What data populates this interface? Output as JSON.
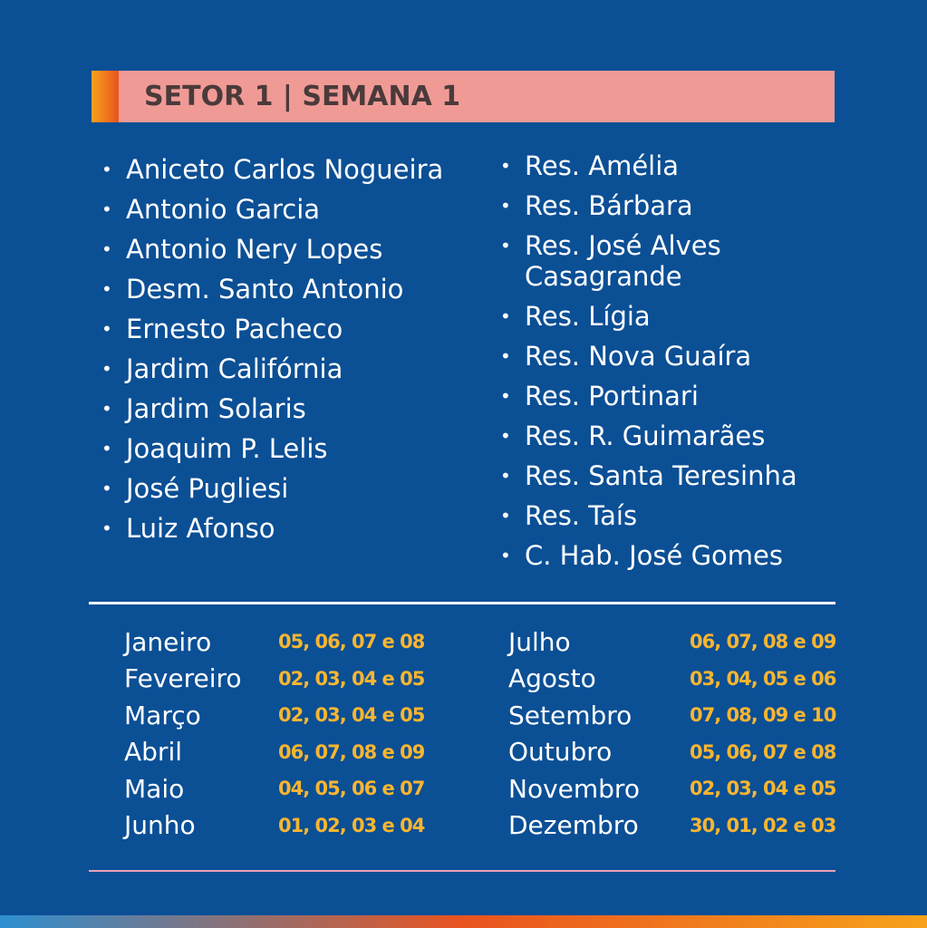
{
  "header": {
    "title": "SETOR 1 | SEMANA 1"
  },
  "neighborhoods": {
    "left": [
      "Aniceto Carlos Nogueira",
      "Antonio Garcia",
      "Antonio Nery Lopes",
      "Desm. Santo Antonio",
      "Ernesto Pacheco",
      "Jardim Califórnia",
      "Jardim Solaris",
      "Joaquim P. Lelis",
      "José Pugliesi",
      "Luiz Afonso"
    ],
    "right": [
      "Res. Amélia",
      "Res. Bárbara",
      "Res. José Alves Casagrande",
      "Res. Lígia",
      "Res. Nova Guaíra",
      "Res. Portinari",
      "Res. R. Guimarães",
      "Res. Santa Teresinha",
      "Res. Taís",
      "C. Hab. José Gomes"
    ]
  },
  "schedule": {
    "left": [
      [
        "Janeiro",
        "05, 06, 07 e 08"
      ],
      [
        "Fevereiro",
        "02, 03, 04 e 05"
      ],
      [
        "Março",
        "02, 03, 04 e 05"
      ],
      [
        "Abril",
        "06, 07, 08 e 09"
      ],
      [
        "Maio",
        "04, 05, 06 e 07"
      ],
      [
        "Junho",
        "01, 02, 03 e 04"
      ]
    ],
    "right": [
      [
        "Julho",
        "06, 07, 08 e 09"
      ],
      [
        "Agosto",
        "03, 04, 05 e 06"
      ],
      [
        "Setembro",
        "07, 08, 09 e 10"
      ],
      [
        "Outubro",
        "05, 06, 07 e 08"
      ],
      [
        "Novembro",
        "02, 03, 04 e 05"
      ],
      [
        "Dezembro",
        "30, 01, 02 e 03"
      ]
    ]
  }
}
